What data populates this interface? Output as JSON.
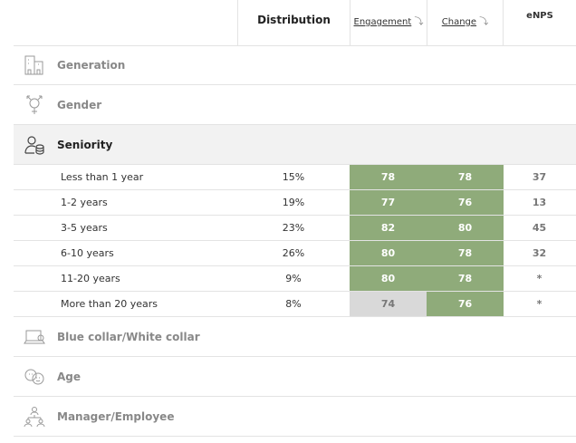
{
  "colors": {
    "positive": "#8fab7a",
    "neutral": "#d9d9d9"
  },
  "header": {
    "distribution": "Distribution",
    "engagement": "Engagement",
    "change": "Change",
    "enps": "eNPS",
    "sort_icon": "sort-down-arrow-icon"
  },
  "categories": [
    {
      "label": "Generation",
      "icon": "buildings-icon"
    },
    {
      "label": "Gender",
      "icon": "gender-icon"
    },
    {
      "label": "Seniority",
      "icon": "person-coins-icon",
      "expanded": true
    },
    {
      "label": "Blue collar/White collar",
      "icon": "laptop-icon"
    },
    {
      "label": "Age",
      "icon": "faces-icon"
    },
    {
      "label": "Manager/Employee",
      "icon": "org-chart-icon"
    }
  ],
  "rows": [
    {
      "label": "Less than 1 year",
      "distribution": "15%",
      "engagement": "78",
      "engagement_color": "positive",
      "change": "78",
      "enps": "37"
    },
    {
      "label": "1-2 years",
      "distribution": "19%",
      "engagement": "77",
      "engagement_color": "positive",
      "change": "76",
      "enps": "13"
    },
    {
      "label": "3-5 years",
      "distribution": "23%",
      "engagement": "82",
      "engagement_color": "positive",
      "change": "80",
      "enps": "45"
    },
    {
      "label": "6-10 years",
      "distribution": "26%",
      "engagement": "80",
      "engagement_color": "positive",
      "change": "78",
      "enps": "32"
    },
    {
      "label": "11-20 years",
      "distribution": "9%",
      "engagement": "80",
      "engagement_color": "positive",
      "change": "78",
      "enps": "*"
    },
    {
      "label": "More than 20 years",
      "distribution": "8%",
      "engagement": "74",
      "engagement_color": "neutral",
      "change": "76",
      "enps": "*"
    }
  ]
}
